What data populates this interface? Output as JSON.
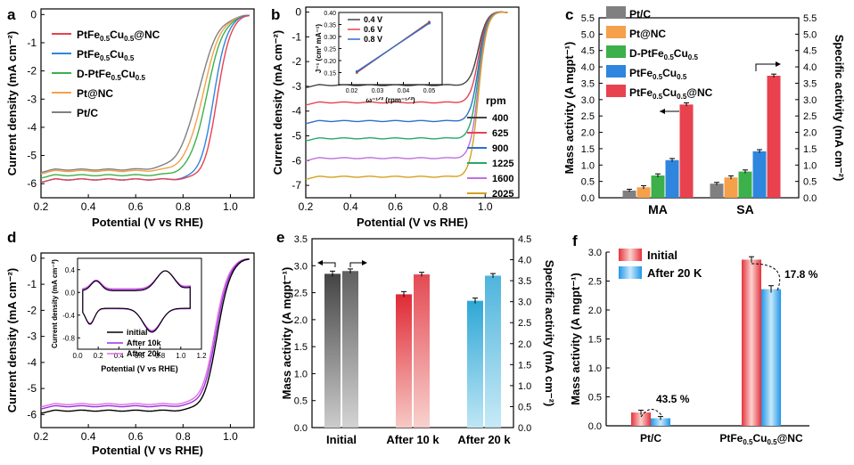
{
  "colors": {
    "ptc": "#808080",
    "ptnc": "#f5a04b",
    "dpt": "#3cb04a",
    "ptfe": "#2e86de",
    "main": "#e8424e",
    "r400": "#444444",
    "r625": "#e8424e",
    "r900": "#2e70c8",
    "r1225": "#27a86a",
    "r1600": "#c070e0",
    "r2025": "#d6a020",
    "initial": "#000000",
    "k10": "#9b30e0",
    "k20": "#e070e0"
  },
  "chart_data": [
    {
      "id": "a",
      "type": "line",
      "panel_label": "a",
      "xlabel": "Potential (V vs RHE)",
      "ylabel": "Current  density (mA cm⁻²)",
      "xlim": [
        0.2,
        1.1
      ],
      "ylim": [
        -6.5,
        0.2
      ],
      "xticks": [
        "0.2",
        "0.4",
        "0.6",
        "0.8",
        "1.0"
      ],
      "yticks": [
        "0",
        "-1",
        "-2",
        "-3",
        "-4",
        "-5",
        "-6"
      ],
      "series": [
        {
          "key": "main",
          "name": "PtFe0.5Cu0.5@NC",
          "name_parts": [
            [
              "PtFe",
              "n"
            ],
            [
              "0.5",
              "s"
            ],
            [
              "Cu",
              "n"
            ],
            [
              "0.5",
              "s"
            ],
            [
              "@NC",
              "n"
            ]
          ],
          "plateau": -5.85,
          "half": 0.945,
          "k": 0.028
        },
        {
          "key": "ptfe",
          "name": "PtFe0.5Cu0.5",
          "name_parts": [
            [
              "PtFe",
              "n"
            ],
            [
              "0.5",
              "s"
            ],
            [
              "Cu",
              "n"
            ],
            [
              "0.5",
              "s"
            ]
          ],
          "plateau": -5.85,
          "half": 0.93,
          "k": 0.029
        },
        {
          "key": "dpt",
          "name": "D-PtFe0.5Cu0.5",
          "name_parts": [
            [
              "D-PtFe",
              "n"
            ],
            [
              "0.5",
              "s"
            ],
            [
              "Cu",
              "n"
            ],
            [
              "0.5",
              "s"
            ]
          ],
          "plateau": -5.7,
          "half": 0.9,
          "k": 0.036
        },
        {
          "key": "ptnc",
          "name": "Pt@NC",
          "name_parts": [
            [
              "Pt@NC",
              "n"
            ]
          ],
          "plateau": -5.55,
          "half": 0.885,
          "k": 0.038
        },
        {
          "key": "ptc",
          "name": "Pt/C",
          "name_parts": [
            [
              "Pt/C",
              "n"
            ]
          ],
          "plateau": -5.5,
          "half": 0.865,
          "k": 0.042
        }
      ]
    },
    {
      "id": "b",
      "type": "line",
      "panel_label": "b",
      "xlabel": "Potential (V vs RHE)",
      "ylabel": "Current  density (mA cm⁻²)",
      "xlim": [
        0.2,
        1.15
      ],
      "ylim": [
        -7.5,
        0.2
      ],
      "xticks": [
        "0.2",
        "0.4",
        "0.6",
        "0.8",
        "1.0"
      ],
      "yticks": [
        "0",
        "-1",
        "-2",
        "-3",
        "-4",
        "-5",
        "-6",
        "-7"
      ],
      "legend_title": "rpm",
      "series": [
        {
          "key": "r400",
          "name": "400",
          "plateau": -2.95
        },
        {
          "key": "r625",
          "name": "625",
          "plateau": -3.65
        },
        {
          "key": "r900",
          "name": "900",
          "plateau": -4.4
        },
        {
          "key": "r1225",
          "name": "1225",
          "plateau": -5.1
        },
        {
          "key": "r1600",
          "name": "1600",
          "plateau": -5.9
        },
        {
          "key": "r2025",
          "name": "2025",
          "plateau": -6.65
        }
      ],
      "inset": {
        "type": "line",
        "xlabel": "ω⁻¹ᐟ² (rpm⁻¹ᐟ²)",
        "ylabel": "J⁻¹ (cm² mA⁻¹)",
        "xlim": [
          0.015,
          0.055
        ],
        "ylim": [
          0.1,
          0.4
        ],
        "xticks": [
          "0.02",
          "0.03",
          "0.04",
          "0.05"
        ],
        "yticks": [
          "0.15",
          "0.20",
          "0.25",
          "0.30",
          "0.35",
          "0.40"
        ],
        "series": [
          {
            "key": "r400",
            "name": "0.4 V",
            "x": [
              0.022,
              0.05
            ],
            "y": [
              0.15,
              0.36
            ]
          },
          {
            "key": "r625",
            "name": "0.6 V",
            "x": [
              0.022,
              0.05
            ],
            "y": [
              0.152,
              0.358
            ]
          },
          {
            "key": "r900",
            "name": "0.8 V",
            "x": [
              0.022,
              0.05
            ],
            "y": [
              0.155,
              0.355
            ]
          }
        ]
      }
    },
    {
      "id": "c",
      "type": "bar",
      "panel_label": "c",
      "categories": [
        "MA",
        "SA"
      ],
      "ylabel": "Mass activity (A mgpt⁻¹)",
      "ylabel2": "Specific activity (mA cm⁻²)",
      "ylim": [
        0,
        5.5
      ],
      "ylim2": [
        0,
        5.5
      ],
      "yticks": [
        "0.0",
        "0.5",
        "1.0",
        "1.5",
        "2.0",
        "2.5",
        "3.0",
        "3.5",
        "4.0",
        "4.5",
        "5.0",
        "5.5"
      ],
      "series": [
        {
          "key": "ptc",
          "name": "Pt/C",
          "name_parts": [
            [
              "Pt/C",
              "n"
            ]
          ],
          "values": [
            0.22,
            0.43
          ],
          "err": [
            0.04,
            0.04
          ]
        },
        {
          "key": "ptnc",
          "name": "Pt@NC",
          "name_parts": [
            [
              "Pt@NC",
              "n"
            ]
          ],
          "values": [
            0.32,
            0.62
          ],
          "err": [
            0.05,
            0.05
          ]
        },
        {
          "key": "dpt",
          "name": "D-PtFe0.5Cu0.5",
          "name_parts": [
            [
              "D-PtFe",
              "n"
            ],
            [
              "0.5",
              "s"
            ],
            [
              "Cu",
              "n"
            ],
            [
              "0.5",
              "s"
            ]
          ],
          "values": [
            0.68,
            0.8
          ],
          "err": [
            0.05,
            0.05
          ]
        },
        {
          "key": "ptfe",
          "name": "PtFe0.5Cu0.5",
          "name_parts": [
            [
              "PtFe",
              "n"
            ],
            [
              "0.5",
              "s"
            ],
            [
              "Cu",
              "n"
            ],
            [
              "0.5",
              "s"
            ]
          ],
          "values": [
            1.15,
            1.42
          ],
          "err": [
            0.05,
            0.05
          ]
        },
        {
          "key": "main",
          "name": "PtFe0.5Cu0.5@NC",
          "name_parts": [
            [
              "PtFe",
              "n"
            ],
            [
              "0.5",
              "s"
            ],
            [
              "Cu",
              "n"
            ],
            [
              "0.5",
              "s"
            ],
            [
              "@NC",
              "n"
            ]
          ],
          "values": [
            2.85,
            3.73
          ],
          "err": [
            0.05,
            0.05
          ]
        }
      ]
    },
    {
      "id": "d",
      "type": "line",
      "panel_label": "d",
      "xlabel": "Potential (V vs RHE)",
      "ylabel": "Current  density (mA cm⁻²)",
      "xlim": [
        0.2,
        1.1
      ],
      "ylim": [
        -6.5,
        0.2
      ],
      "xticks": [
        "0.2",
        "0.4",
        "0.6",
        "0.8",
        "1.0"
      ],
      "yticks": [
        "0",
        "-1",
        "-2",
        "-3",
        "-4",
        "-5",
        "-6"
      ],
      "series": [
        {
          "key": "initial",
          "name": "initial",
          "plateau": -5.85,
          "half": 0.945,
          "k": 0.028
        },
        {
          "key": "k10",
          "name": "After 10k",
          "plateau": -5.68,
          "half": 0.94,
          "k": 0.028
        },
        {
          "key": "k20",
          "name": "After 20k",
          "plateau": -5.6,
          "half": 0.935,
          "k": 0.028
        }
      ],
      "inset": {
        "type": "line",
        "xlabel": "Potential (V vs RHE)",
        "ylabel": "Current  density (mA cm⁻²)",
        "xlim": [
          0,
          1.2
        ],
        "ylim": [
          -1.0,
          0.6
        ],
        "xticks": [
          "0.0",
          "0.2",
          "0.4",
          "0.6",
          "0.8",
          "1.0",
          "1.2"
        ],
        "yticks": [
          "0.4",
          "0.0",
          "-0.4",
          "-0.8"
        ]
      }
    },
    {
      "id": "e",
      "type": "bar",
      "panel_label": "e",
      "categories": [
        "Initial",
        "After 10 k",
        "After 20 k"
      ],
      "ylabel": "Mass activity (A mgpt⁻¹)",
      "ylabel2": "Specific activity (mA cm⁻²)",
      "ylim": [
        0,
        3.5
      ],
      "ylim2": [
        0,
        4.5
      ],
      "yticks": [
        "0.0",
        "0.5",
        "1.0",
        "1.5",
        "2.0",
        "2.5",
        "3.0",
        "3.5"
      ],
      "yticks2": [
        "0.0",
        "0.5",
        "1.0",
        "1.5",
        "2.0",
        "2.5",
        "3.0",
        "3.5",
        "4.0",
        "4.5"
      ],
      "series": [
        {
          "name": "MA",
          "values": [
            2.85,
            2.47,
            2.35
          ],
          "err": [
            0.05,
            0.05,
            0.05
          ],
          "axis": "left"
        },
        {
          "name": "SA",
          "values": [
            3.73,
            3.65,
            3.62
          ],
          "err": [
            0.05,
            0.05,
            0.05
          ],
          "axis": "right"
        }
      ]
    },
    {
      "id": "f",
      "type": "bar",
      "panel_label": "f",
      "categories": [
        "Pt/C",
        "PtFe0.5Cu0.5@NC"
      ],
      "category_parts": [
        [
          [
            "Pt/C",
            "n"
          ]
        ],
        [
          [
            "PtFe",
            "n"
          ],
          [
            "0.5",
            "s"
          ],
          [
            "Cu",
            "n"
          ],
          [
            "0.5",
            "s"
          ],
          [
            "@NC",
            "n"
          ]
        ]
      ],
      "ylabel": "Mass activity (A mgpt⁻¹)",
      "ylim": [
        0,
        3.0
      ],
      "yticks": [
        "0.0",
        "0.5",
        "1.0",
        "1.5",
        "2.0",
        "2.5",
        "3.0"
      ],
      "series": [
        {
          "name": "Initial",
          "values": [
            0.23,
            2.87
          ],
          "err": [
            0.04,
            0.05
          ]
        },
        {
          "name": "After 20 K",
          "values": [
            0.13,
            2.36
          ],
          "err": [
            0.03,
            0.06
          ]
        }
      ],
      "annotations": [
        "43.5 %",
        "17.8 %"
      ]
    }
  ]
}
